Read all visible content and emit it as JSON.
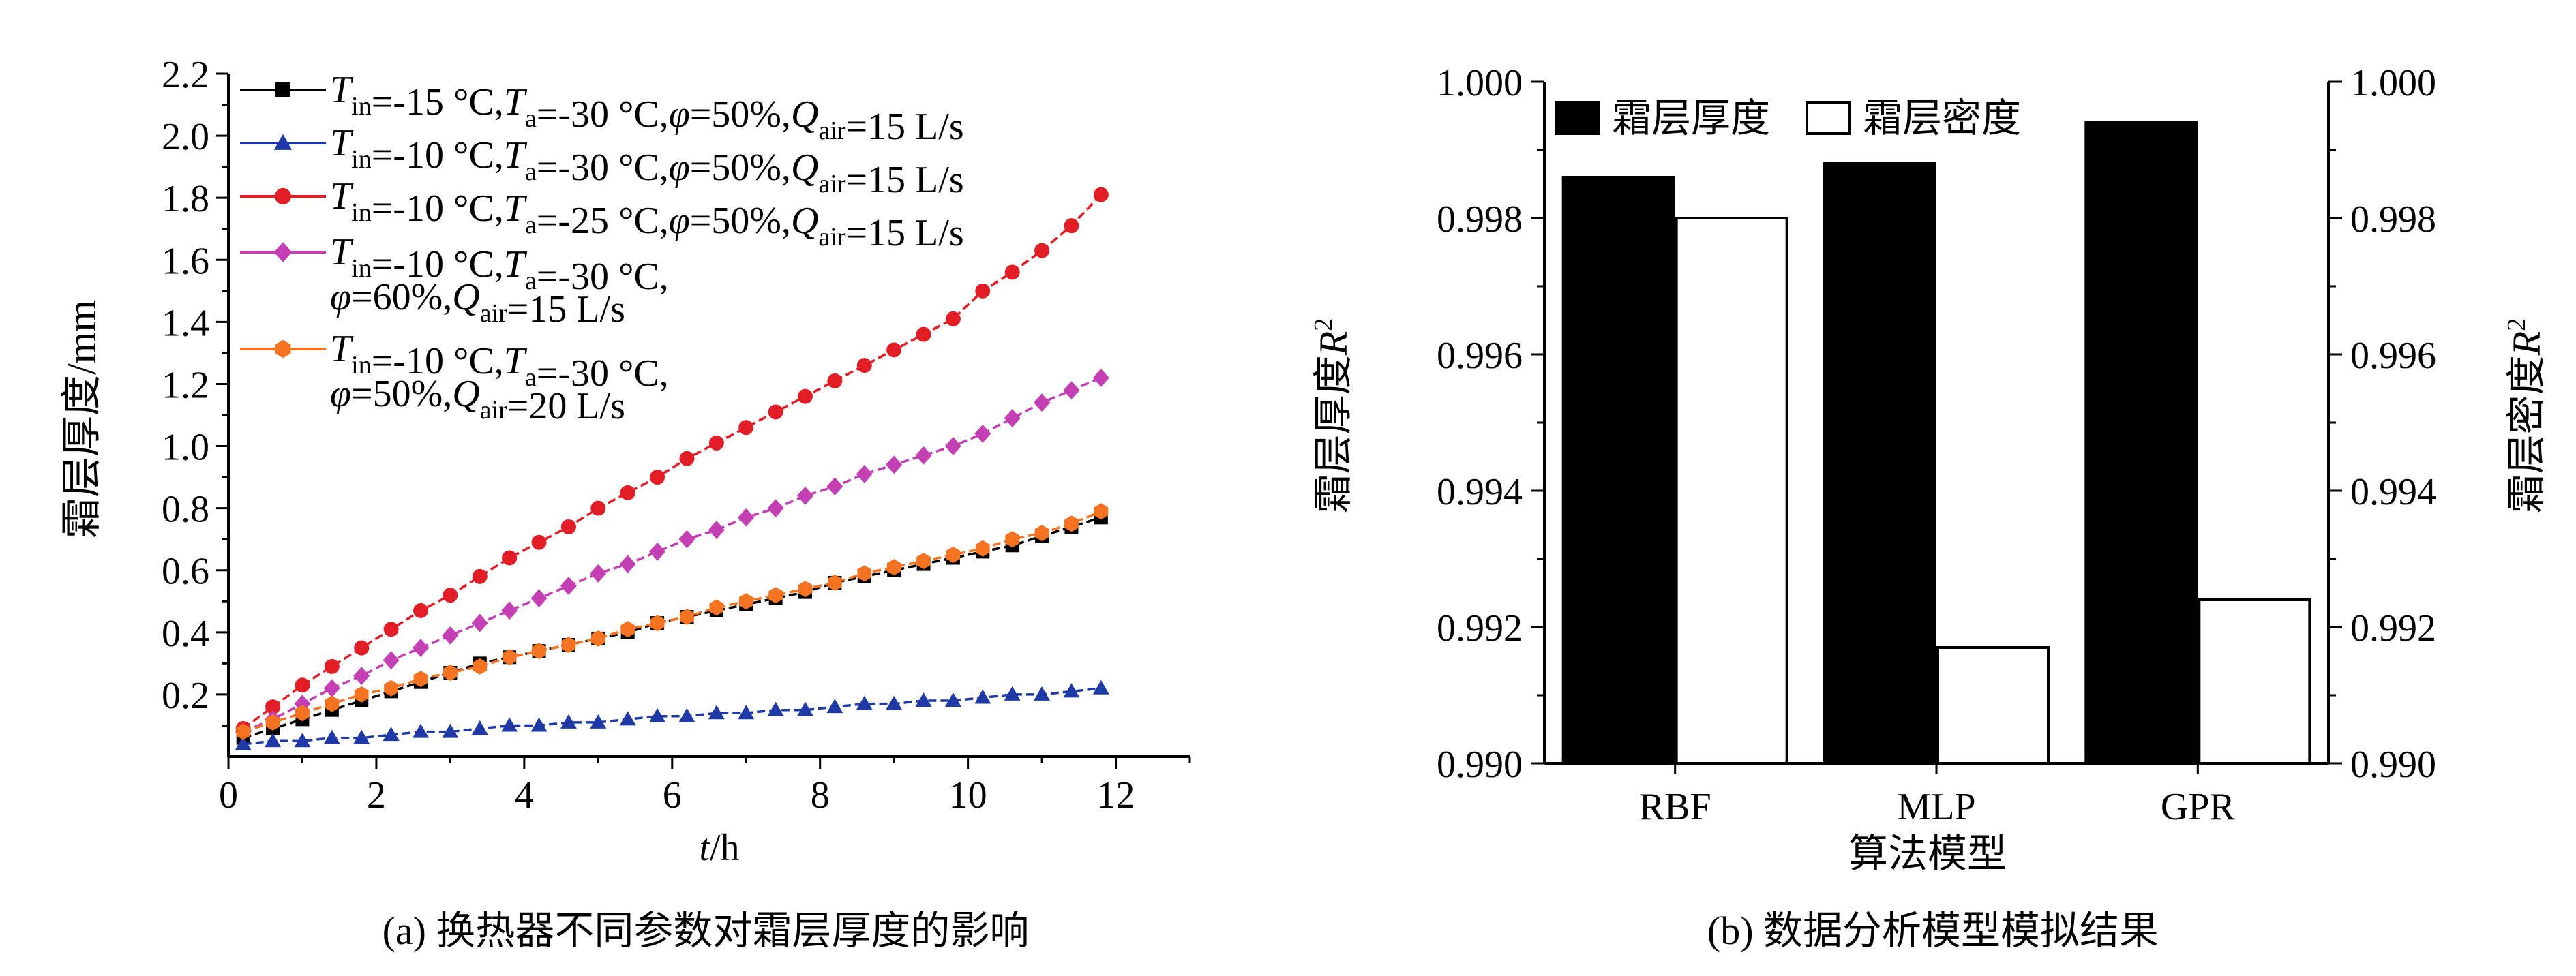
{
  "chart_data": [
    {
      "type": "line",
      "panel_label": "(a)",
      "caption": "(a) 换热器不同参数对霜层厚度的影响",
      "xlabel": "t/h",
      "ylabel": "霜层厚度/mm",
      "xlim": [
        0,
        13
      ],
      "ylim": [
        0,
        2.2
      ],
      "x_ticks": [
        "0",
        "2",
        "4",
        "6",
        "8",
        "10",
        "12"
      ],
      "y_ticks": [
        "0.2",
        "0.4",
        "0.6",
        "0.8",
        "1.0",
        "1.2",
        "1.4",
        "1.6",
        "1.8",
        "2.0",
        "2.2"
      ],
      "legend_position": "top-left",
      "grid": false,
      "series": [
        {
          "name": "T_in=-15 °C,T_a=-30 °C,φ=50%,Q_air=15 L/s",
          "color": "#000000",
          "marker": "square",
          "legend": {
            "line1": [
              [
                "T",
                "it"
              ],
              [
                "in",
                "sub"
              ],
              [
                "=-15 °C,",
                ""
              ],
              [
                "T",
                "it"
              ],
              [
                "a",
                "sub"
              ],
              [
                "=-30 °C,",
                ""
              ],
              [
                "φ",
                "it"
              ],
              [
                "=50%,",
                ""
              ],
              [
                "Q",
                "it"
              ],
              [
                "air",
                "sub"
              ],
              [
                "=15 L/s",
                ""
              ]
            ]
          },
          "points": [
            [
              0.2,
              0.06
            ],
            [
              0.6,
              0.09
            ],
            [
              1.0,
              0.12
            ],
            [
              1.4,
              0.15
            ],
            [
              1.8,
              0.18
            ],
            [
              2.2,
              0.21
            ],
            [
              2.6,
              0.24
            ],
            [
              3.0,
              0.27
            ],
            [
              3.4,
              0.3
            ],
            [
              3.8,
              0.32
            ],
            [
              4.2,
              0.34
            ],
            [
              4.6,
              0.36
            ],
            [
              5.0,
              0.38
            ],
            [
              5.4,
              0.4
            ],
            [
              5.8,
              0.43
            ],
            [
              6.2,
              0.45
            ],
            [
              6.6,
              0.47
            ],
            [
              7.0,
              0.49
            ],
            [
              7.4,
              0.51
            ],
            [
              7.8,
              0.53
            ],
            [
              8.2,
              0.56
            ],
            [
              8.6,
              0.58
            ],
            [
              9.0,
              0.6
            ],
            [
              9.4,
              0.62
            ],
            [
              9.8,
              0.64
            ],
            [
              10.2,
              0.66
            ],
            [
              10.6,
              0.68
            ],
            [
              11.0,
              0.71
            ],
            [
              11.4,
              0.74
            ],
            [
              11.8,
              0.77
            ]
          ]
        },
        {
          "name": "T_in=-10 °C,T_a=-30 °C,φ=50%,Q_air=15 L/s",
          "color": "#1f3aa6",
          "marker": "triangle",
          "legend": {
            "line1": [
              [
                "T",
                "it"
              ],
              [
                "in",
                "sub"
              ],
              [
                "=-10 °C,",
                ""
              ],
              [
                "T",
                "it"
              ],
              [
                "a",
                "sub"
              ],
              [
                "=-30 °C,",
                ""
              ],
              [
                "φ",
                "it"
              ],
              [
                "=50%,",
                ""
              ],
              [
                "Q",
                "it"
              ],
              [
                "air",
                "sub"
              ],
              [
                "=15 L/s",
                ""
              ]
            ]
          },
          "points": [
            [
              0.2,
              0.04
            ],
            [
              0.6,
              0.05
            ],
            [
              1.0,
              0.05
            ],
            [
              1.4,
              0.06
            ],
            [
              1.8,
              0.06
            ],
            [
              2.2,
              0.07
            ],
            [
              2.6,
              0.08
            ],
            [
              3.0,
              0.08
            ],
            [
              3.4,
              0.09
            ],
            [
              3.8,
              0.1
            ],
            [
              4.2,
              0.1
            ],
            [
              4.6,
              0.11
            ],
            [
              5.0,
              0.11
            ],
            [
              5.4,
              0.12
            ],
            [
              5.8,
              0.13
            ],
            [
              6.2,
              0.13
            ],
            [
              6.6,
              0.14
            ],
            [
              7.0,
              0.14
            ],
            [
              7.4,
              0.15
            ],
            [
              7.8,
              0.15
            ],
            [
              8.2,
              0.16
            ],
            [
              8.6,
              0.17
            ],
            [
              9.0,
              0.17
            ],
            [
              9.4,
              0.18
            ],
            [
              9.8,
              0.18
            ],
            [
              10.2,
              0.19
            ],
            [
              10.6,
              0.2
            ],
            [
              11.0,
              0.2
            ],
            [
              11.4,
              0.21
            ],
            [
              11.8,
              0.22
            ]
          ]
        },
        {
          "name": "T_in=-10 °C,T_a=-25 °C,φ=50%,Q_air=15 L/s",
          "color": "#e21d26",
          "marker": "circle",
          "legend": {
            "line1": [
              [
                "T",
                "it"
              ],
              [
                "in",
                "sub"
              ],
              [
                "=-10 °C,",
                ""
              ],
              [
                "T",
                "it"
              ],
              [
                "a",
                "sub"
              ],
              [
                "=-25 °C,",
                ""
              ],
              [
                "φ",
                "it"
              ],
              [
                "=50%,",
                ""
              ],
              [
                "Q",
                "it"
              ],
              [
                "air",
                "sub"
              ],
              [
                "=15 L/s",
                ""
              ]
            ]
          },
          "points": [
            [
              0.2,
              0.09
            ],
            [
              0.6,
              0.16
            ],
            [
              1.0,
              0.23
            ],
            [
              1.4,
              0.29
            ],
            [
              1.8,
              0.35
            ],
            [
              2.2,
              0.41
            ],
            [
              2.6,
              0.47
            ],
            [
              3.0,
              0.52
            ],
            [
              3.4,
              0.58
            ],
            [
              3.8,
              0.64
            ],
            [
              4.2,
              0.69
            ],
            [
              4.6,
              0.74
            ],
            [
              5.0,
              0.8
            ],
            [
              5.4,
              0.85
            ],
            [
              5.8,
              0.9
            ],
            [
              6.2,
              0.96
            ],
            [
              6.6,
              1.01
            ],
            [
              7.0,
              1.06
            ],
            [
              7.4,
              1.11
            ],
            [
              7.8,
              1.16
            ],
            [
              8.2,
              1.21
            ],
            [
              8.6,
              1.26
            ],
            [
              9.0,
              1.31
            ],
            [
              9.4,
              1.36
            ],
            [
              9.8,
              1.41
            ],
            [
              10.2,
              1.5
            ],
            [
              10.6,
              1.56
            ],
            [
              11.0,
              1.63
            ],
            [
              11.4,
              1.71
            ],
            [
              11.8,
              1.81
            ]
          ]
        },
        {
          "name": "T_in=-10 °C,T_a=-30 °C, φ=60%,Q_air=15 L/s",
          "color": "#c43fb3",
          "marker": "diamond",
          "legend": {
            "line1": [
              [
                "T",
                "it"
              ],
              [
                "in",
                "sub"
              ],
              [
                "=-10 °C,",
                ""
              ],
              [
                "T",
                "it"
              ],
              [
                "a",
                "sub"
              ],
              [
                "=-30 °C,",
                ""
              ]
            ],
            "line2": [
              [
                "φ",
                "it"
              ],
              [
                "=60%,",
                ""
              ],
              [
                "Q",
                "it"
              ],
              [
                "air",
                "sub"
              ],
              [
                "=15 L/s",
                ""
              ]
            ]
          },
          "points": [
            [
              0.2,
              0.08
            ],
            [
              0.6,
              0.12
            ],
            [
              1.0,
              0.17
            ],
            [
              1.4,
              0.22
            ],
            [
              1.8,
              0.26
            ],
            [
              2.2,
              0.31
            ],
            [
              2.6,
              0.35
            ],
            [
              3.0,
              0.39
            ],
            [
              3.4,
              0.43
            ],
            [
              3.8,
              0.47
            ],
            [
              4.2,
              0.51
            ],
            [
              4.6,
              0.55
            ],
            [
              5.0,
              0.59
            ],
            [
              5.4,
              0.62
            ],
            [
              5.8,
              0.66
            ],
            [
              6.2,
              0.7
            ],
            [
              6.6,
              0.73
            ],
            [
              7.0,
              0.77
            ],
            [
              7.4,
              0.8
            ],
            [
              7.8,
              0.84
            ],
            [
              8.2,
              0.87
            ],
            [
              8.6,
              0.91
            ],
            [
              9.0,
              0.94
            ],
            [
              9.4,
              0.97
            ],
            [
              9.8,
              1.0
            ],
            [
              10.2,
              1.04
            ],
            [
              10.6,
              1.09
            ],
            [
              11.0,
              1.14
            ],
            [
              11.4,
              1.18
            ],
            [
              11.8,
              1.22
            ]
          ]
        },
        {
          "name": "T_in=-10 °C,T_a=-30 °C, φ=50%,Q_air=20 L/s",
          "color": "#f47320",
          "marker": "hexagon",
          "legend": {
            "line1": [
              [
                "T",
                "it"
              ],
              [
                "in",
                "sub"
              ],
              [
                "=-10 °C,",
                ""
              ],
              [
                "T",
                "it"
              ],
              [
                "a",
                "sub"
              ],
              [
                "=-30 °C,",
                ""
              ]
            ],
            "line2": [
              [
                "φ",
                "it"
              ],
              [
                "=50%,",
                ""
              ],
              [
                "Q",
                "it"
              ],
              [
                "air",
                "sub"
              ],
              [
                "=20 L/s",
                ""
              ]
            ]
          },
          "points": [
            [
              0.2,
              0.08
            ],
            [
              0.6,
              0.11
            ],
            [
              1.0,
              0.14
            ],
            [
              1.4,
              0.17
            ],
            [
              1.8,
              0.2
            ],
            [
              2.2,
              0.22
            ],
            [
              2.6,
              0.25
            ],
            [
              3.0,
              0.27
            ],
            [
              3.4,
              0.29
            ],
            [
              3.8,
              0.32
            ],
            [
              4.2,
              0.34
            ],
            [
              4.6,
              0.36
            ],
            [
              5.0,
              0.38
            ],
            [
              5.4,
              0.41
            ],
            [
              5.8,
              0.43
            ],
            [
              6.2,
              0.45
            ],
            [
              6.6,
              0.48
            ],
            [
              7.0,
              0.5
            ],
            [
              7.4,
              0.52
            ],
            [
              7.8,
              0.54
            ],
            [
              8.2,
              0.56
            ],
            [
              8.6,
              0.59
            ],
            [
              9.0,
              0.61
            ],
            [
              9.4,
              0.63
            ],
            [
              9.8,
              0.65
            ],
            [
              10.2,
              0.67
            ],
            [
              10.6,
              0.7
            ],
            [
              11.0,
              0.72
            ],
            [
              11.4,
              0.75
            ],
            [
              11.8,
              0.79
            ]
          ]
        }
      ]
    },
    {
      "type": "bar",
      "panel_label": "(b)",
      "caption": "(b) 数据分析模型模拟结果",
      "xlabel": "算法模型",
      "ylabel_left": [
        "霜层厚度",
        "R",
        "2"
      ],
      "ylabel_right": [
        "霜层密度",
        "R",
        "2"
      ],
      "ylim": [
        0.99,
        1.0
      ],
      "y_ticks": [
        "0.990",
        "0.992",
        "0.994",
        "0.996",
        "0.998",
        "1.000"
      ],
      "categories": [
        "RBF",
        "MLP",
        "GPR"
      ],
      "legend_position": "top-left",
      "series": [
        {
          "name": "霜层厚度",
          "color": "#000000",
          "values": [
            0.9986,
            0.9988,
            0.9994
          ]
        },
        {
          "name": "霜层密度",
          "color": "#ffffff",
          "values": [
            0.998,
            0.9917,
            0.9924
          ]
        }
      ]
    }
  ]
}
